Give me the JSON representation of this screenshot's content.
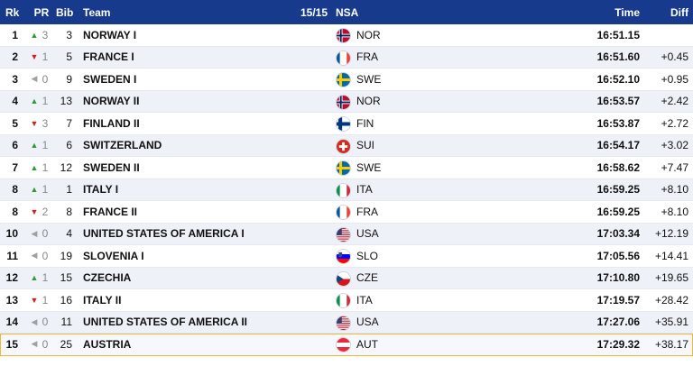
{
  "header": {
    "rank": "Rk",
    "pr": "PR",
    "bib": "Bib",
    "team": "Team",
    "count": "15/15",
    "nsa": "NSA",
    "time": "Time",
    "diff": "Diff",
    "bg_color": "#173a8d"
  },
  "rows": [
    {
      "rank": "1",
      "trend": "up",
      "pr": "3",
      "bib": "3",
      "team": "NORWAY I",
      "nsa": "NOR",
      "flag": "flag-norway-icon",
      "time": "16:51.15",
      "diff": ""
    },
    {
      "rank": "2",
      "trend": "down",
      "pr": "1",
      "bib": "5",
      "team": "FRANCE I",
      "nsa": "FRA",
      "flag": "flag-france-icon",
      "time": "16:51.60",
      "diff": "+0.45"
    },
    {
      "rank": "3",
      "trend": "same",
      "pr": "0",
      "bib": "9",
      "team": "SWEDEN I",
      "nsa": "SWE",
      "flag": "flag-sweden-icon",
      "time": "16:52.10",
      "diff": "+0.95"
    },
    {
      "rank": "4",
      "trend": "up",
      "pr": "1",
      "bib": "13",
      "team": "NORWAY II",
      "nsa": "NOR",
      "flag": "flag-norway-icon",
      "time": "16:53.57",
      "diff": "+2.42"
    },
    {
      "rank": "5",
      "trend": "down",
      "pr": "3",
      "bib": "7",
      "team": "FINLAND II",
      "nsa": "FIN",
      "flag": "flag-finland-icon",
      "time": "16:53.87",
      "diff": "+2.72"
    },
    {
      "rank": "6",
      "trend": "up",
      "pr": "1",
      "bib": "6",
      "team": "SWITZERLAND",
      "nsa": "SUI",
      "flag": "flag-switzerland-icon",
      "time": "16:54.17",
      "diff": "+3.02"
    },
    {
      "rank": "7",
      "trend": "up",
      "pr": "1",
      "bib": "12",
      "team": "SWEDEN II",
      "nsa": "SWE",
      "flag": "flag-sweden-icon",
      "time": "16:58.62",
      "diff": "+7.47"
    },
    {
      "rank": "8",
      "trend": "up",
      "pr": "1",
      "bib": "1",
      "team": "ITALY I",
      "nsa": "ITA",
      "flag": "flag-italy-icon",
      "time": "16:59.25",
      "diff": "+8.10"
    },
    {
      "rank": "8",
      "trend": "down",
      "pr": "2",
      "bib": "8",
      "team": "FRANCE II",
      "nsa": "FRA",
      "flag": "flag-france-icon",
      "time": "16:59.25",
      "diff": "+8.10"
    },
    {
      "rank": "10",
      "trend": "same",
      "pr": "0",
      "bib": "4",
      "team": "UNITED STATES OF AMERICA I",
      "nsa": "USA",
      "flag": "flag-usa-icon",
      "time": "17:03.34",
      "diff": "+12.19"
    },
    {
      "rank": "11",
      "trend": "same",
      "pr": "0",
      "bib": "19",
      "team": "SLOVENIA I",
      "nsa": "SLO",
      "flag": "flag-slovenia-icon",
      "time": "17:05.56",
      "diff": "+14.41"
    },
    {
      "rank": "12",
      "trend": "up",
      "pr": "1",
      "bib": "15",
      "team": "CZECHIA",
      "nsa": "CZE",
      "flag": "flag-czechia-icon",
      "time": "17:10.80",
      "diff": "+19.65"
    },
    {
      "rank": "13",
      "trend": "down",
      "pr": "1",
      "bib": "16",
      "team": "ITALY II",
      "nsa": "ITA",
      "flag": "flag-italy-icon",
      "time": "17:19.57",
      "diff": "+28.42"
    },
    {
      "rank": "14",
      "trend": "same",
      "pr": "0",
      "bib": "11",
      "team": "UNITED STATES OF AMERICA II",
      "nsa": "USA",
      "flag": "flag-usa-icon",
      "time": "17:27.06",
      "diff": "+35.91"
    },
    {
      "rank": "15",
      "trend": "same",
      "pr": "0",
      "bib": "25",
      "team": "AUSTRIA",
      "nsa": "AUT",
      "flag": "flag-austria-icon",
      "time": "17:29.32",
      "diff": "+38.17",
      "highlight": true
    }
  ],
  "colors": {
    "up": "#2e9b36",
    "down": "#d71f1f",
    "same": "#a0a0a0",
    "highlight_border": "#f0b73a"
  }
}
